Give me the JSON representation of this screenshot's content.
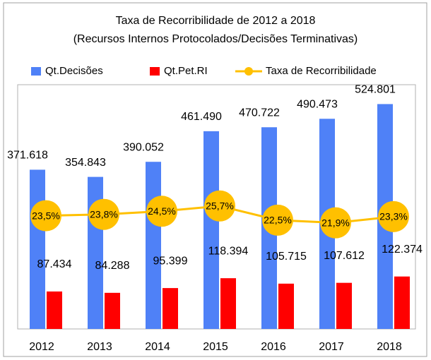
{
  "chart_data": {
    "type": "bar-line",
    "title": [
      "Taxa de Recorribilidade de 2012 a 2018",
      "(Recursos Internos Protocolados/Decisões Terminativas)"
    ],
    "categories": [
      "2012",
      "2013",
      "2014",
      "2015",
      "2016",
      "2017",
      "2018"
    ],
    "series": [
      {
        "name": "Qt.Decisões",
        "color": "#4f81f7",
        "type": "bar",
        "values": [
          371618,
          354843,
          390052,
          461490,
          470722,
          490473,
          524801
        ],
        "value_labels": [
          "371.618",
          "354.843",
          "390.052",
          "461.490",
          "470.722",
          "490.473",
          "524.801"
        ]
      },
      {
        "name": "Qt.Pet.RI",
        "color": "#ff0000",
        "type": "bar",
        "values": [
          87434,
          84288,
          95399,
          118394,
          105715,
          107612,
          122374
        ],
        "value_labels": [
          "87.434",
          "84.288",
          "95.399",
          "118.394",
          "105.715",
          "107.612",
          "122.374"
        ]
      },
      {
        "name": "Taxa de Recorribilidade",
        "color": "#ffc000",
        "type": "line",
        "axis": "y2",
        "values": [
          23.5,
          23.8,
          24.5,
          25.7,
          22.5,
          21.9,
          23.3
        ],
        "value_labels": [
          "23,5%",
          "23,8%",
          "24,5%",
          "25,7%",
          "22,5%",
          "21,9%",
          "23,3%"
        ]
      }
    ],
    "ylim": [
      0,
      570000
    ],
    "y2lim": [
      -2,
      53
    ]
  }
}
